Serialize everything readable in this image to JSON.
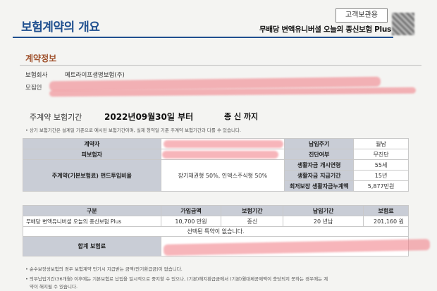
{
  "header": {
    "title": "보험계약의 개요",
    "tag": "고객보관용",
    "product_name": "무배당 변액유니버셜 오늘의 종신보험 Plus"
  },
  "contract_info": {
    "section_title": "계약정보",
    "insurer_label": "보험회사",
    "insurer_value": "메트라이프생명보험(주)",
    "agent_label": "모집인"
  },
  "period": {
    "label": "주계약 보험기간",
    "start": "2022년09월30일  부터",
    "end": "종 신  까지",
    "note": "• 상기 보험기간은 설계일 기준으로 예시된 보험기간이며, 실제 청약일 기준 주계약 보험기간과 다를 수 있습니다."
  },
  "table1": {
    "contractor_label": "계약자",
    "insured_label": "피보험자",
    "main_fund_label": "주계약(기본보험료) 펀드투입비율",
    "fund_ratio": "장기채권형 50%, 인덱스주식형 50%",
    "pay_cycle_label": "납입주기",
    "pay_cycle_value": "월납",
    "medical_label": "진단여부",
    "medical_value": "무진단",
    "life_start_age_label": "생활자금 개시연령",
    "life_start_age_value": "55세",
    "life_period_label": "생활자금 지급기간",
    "life_period_value": "15년",
    "min_total_label": "최저보장 생활자금누계액",
    "min_total_value": "5,877만원"
  },
  "table2": {
    "headers": [
      "구분",
      "가입금액",
      "보험기간",
      "납입기간",
      "보험료"
    ],
    "row": [
      "무배당 변액유니버셜 오늘의 종신보험 Plus",
      "10,700 만원",
      "종신",
      "20 년납",
      "201,160 원"
    ],
    "no_rider": "선택된 특약이 없습니다.",
    "total_label": "합계 보험료"
  },
  "footnotes": [
    "• 순수보장성보험의 경우 보험계약 만기시 지급받는 금액(만기환급금)이 없습니다.",
    "• 의무납입기간(36개월) 이후에는 기본보험료 납입을 일시적으로 중지할 수 있으나, (기본)해지환급금에서 (기본)월대체공제액이 충당되지 못하는 경우에는 계",
    "약이 해지될 수 있습니다."
  ]
}
